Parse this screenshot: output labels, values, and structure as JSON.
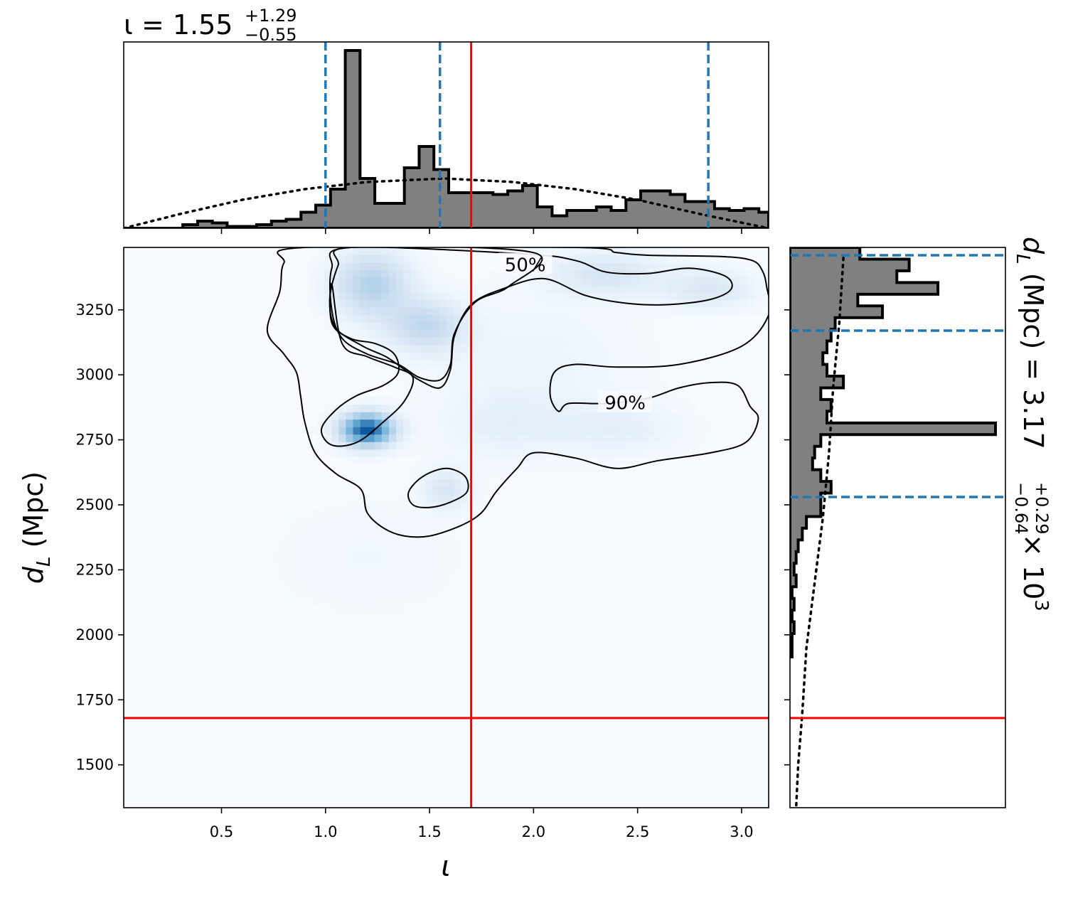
{
  "colors": {
    "hist_fill": "#808080",
    "hist_edge": "#000000",
    "quantile_line": "#1f77b4",
    "truth_line": "#ff0000",
    "prior_line": "#000000",
    "density_colormap": "Blues",
    "density_low": "#f7fbff",
    "density_high": "#08519c"
  },
  "chart_data": [
    {
      "id": "iota-marginal",
      "type": "histogram",
      "title": {
        "symbol": "ι",
        "eq": " = 1.55",
        "sup": "+1.29",
        "sub": "−0.55"
      },
      "xlim": [
        0.03,
        3.13
      ],
      "ylim": [
        0,
        1
      ],
      "xticks": [
        0.5,
        1.0,
        1.5,
        2.0,
        2.5,
        3.0
      ],
      "xtick_labels_shown": false,
      "yticks_shown": false,
      "bin_edges": [
        0.03,
        0.101,
        0.172,
        0.243,
        0.314,
        0.385,
        0.456,
        0.527,
        0.598,
        0.669,
        0.74,
        0.811,
        0.882,
        0.953,
        1.024,
        1.095,
        1.166,
        1.237,
        1.308,
        1.379,
        1.45,
        1.521,
        1.592,
        1.663,
        1.734,
        1.805,
        1.876,
        1.947,
        2.018,
        2.089,
        2.16,
        2.231,
        2.302,
        2.373,
        2.444,
        2.515,
        2.586,
        2.657,
        2.728,
        2.799,
        2.87,
        2.941,
        3.012,
        3.083,
        3.13
      ],
      "counts": [
        0.0,
        0.0,
        0.0,
        0.0,
        0.02,
        0.04,
        0.03,
        0.01,
        0.01,
        0.02,
        0.04,
        0.05,
        0.09,
        0.13,
        0.22,
        1.0,
        0.28,
        0.14,
        0.14,
        0.34,
        0.46,
        0.33,
        0.2,
        0.2,
        0.2,
        0.19,
        0.21,
        0.24,
        0.12,
        0.07,
        0.1,
        0.1,
        0.12,
        0.1,
        0.16,
        0.21,
        0.21,
        0.19,
        0.15,
        0.15,
        0.11,
        0.1,
        0.11,
        0.09
      ],
      "prior": {
        "x": [
          0.03,
          0.3,
          0.6,
          0.9,
          1.2,
          1.57,
          1.9,
          2.2,
          2.5,
          2.8,
          3.13
        ],
        "y": [
          0.0,
          0.08,
          0.16,
          0.22,
          0.26,
          0.28,
          0.26,
          0.22,
          0.16,
          0.08,
          0.0
        ]
      },
      "quantiles": [
        1.0,
        1.55,
        2.84
      ],
      "truth": 1.7
    },
    {
      "id": "joint-density",
      "type": "heatmap",
      "xlabel": "ι",
      "ylabel": {
        "base": "d",
        "sub": "L",
        "rest": " (Mpc)"
      },
      "xlim": [
        0.03,
        3.13
      ],
      "ylim": [
        1335,
        3490
      ],
      "xticks": [
        0.5,
        1.0,
        1.5,
        2.0,
        2.5,
        3.0
      ],
      "xtick_labels": [
        "0.5",
        "1.0",
        "1.5",
        "2.0",
        "2.5",
        "3.0"
      ],
      "yticks": [
        1500,
        1750,
        2000,
        2250,
        2500,
        2750,
        3000,
        3250
      ],
      "ytick_labels": [
        "1500",
        "1750",
        "2000",
        "2250",
        "2500",
        "2750",
        "3000",
        "3250"
      ],
      "density_peaks": [
        {
          "x": 1.2,
          "y": 2790,
          "weight": 1.0,
          "sx": 0.09,
          "sy": 45
        },
        {
          "x": 1.22,
          "y": 3350,
          "weight": 0.42,
          "sx": 0.13,
          "sy": 90
        },
        {
          "x": 1.48,
          "y": 3190,
          "weight": 0.35,
          "sx": 0.13,
          "sy": 70
        },
        {
          "x": 1.58,
          "y": 2560,
          "weight": 0.22,
          "sx": 0.08,
          "sy": 55
        },
        {
          "x": 2.35,
          "y": 3390,
          "weight": 0.22,
          "sx": 0.2,
          "sy": 60
        },
        {
          "x": 2.85,
          "y": 3330,
          "weight": 0.2,
          "sx": 0.15,
          "sy": 55
        },
        {
          "x": 2.4,
          "y": 2790,
          "weight": 0.12,
          "sx": 0.22,
          "sy": 70
        },
        {
          "x": 1.85,
          "y": 2800,
          "weight": 0.1,
          "sx": 0.2,
          "sy": 90
        },
        {
          "x": 1.2,
          "y": 2300,
          "weight": 0.05,
          "sx": 0.3,
          "sy": 150
        },
        {
          "x": 2.0,
          "y": 3050,
          "weight": 0.08,
          "sx": 0.35,
          "sy": 180
        }
      ],
      "contours": [
        {
          "level_label": "50%",
          "label_at": [
            1.96,
            3420
          ],
          "paths": [
            [
              [
                1.03,
                3350
              ],
              [
                1.08,
                3120
              ],
              [
                1.2,
                3070
              ],
              [
                1.33,
                3030
              ],
              [
                1.42,
                2990
              ],
              [
                1.38,
                2900
              ],
              [
                1.28,
                2820
              ],
              [
                1.15,
                2740
              ],
              [
                1.03,
                2730
              ],
              [
                0.98,
                2790
              ],
              [
                1.05,
                2865
              ],
              [
                1.15,
                2920
              ],
              [
                1.28,
                2960
              ],
              [
                1.35,
                3010
              ],
              [
                1.33,
                3080
              ],
              [
                1.24,
                3120
              ],
              [
                1.12,
                3140
              ],
              [
                1.03,
                3200
              ]
            ],
            [
              [
                1.12,
                3490
              ],
              [
                1.95,
                3465
              ],
              [
                2.2,
                3440
              ],
              [
                2.35,
                3395
              ],
              [
                2.55,
                3390
              ],
              [
                2.75,
                3410
              ],
              [
                2.92,
                3380
              ],
              [
                2.95,
                3330
              ],
              [
                2.85,
                3290
              ],
              [
                2.65,
                3270
              ],
              [
                2.45,
                3275
              ],
              [
                2.25,
                3305
              ],
              [
                2.05,
                3370
              ],
              [
                1.85,
                3330
              ],
              [
                1.7,
                3270
              ],
              [
                1.62,
                3150
              ],
              [
                1.6,
                3020
              ],
              [
                1.55,
                2950
              ],
              [
                1.45,
                2980
              ],
              [
                1.38,
                3020
              ],
              [
                1.29,
                3070
              ],
              [
                1.18,
                3110
              ],
              [
                1.05,
                3180
              ],
              [
                1.02,
                3290
              ],
              [
                1.06,
                3420
              ]
            ],
            [
              [
                1.4,
                2550
              ],
              [
                1.47,
                2610
              ],
              [
                1.58,
                2640
              ],
              [
                1.67,
                2610
              ],
              [
                1.68,
                2550
              ],
              [
                1.6,
                2510
              ],
              [
                1.5,
                2490
              ],
              [
                1.42,
                2500
              ]
            ]
          ]
        },
        {
          "level_label": "90%",
          "label_at": [
            2.44,
            2890
          ],
          "paths": [
            [
              [
                0.9,
                3490
              ],
              [
                0.8,
                3430
              ],
              [
                0.78,
                3320
              ],
              [
                0.72,
                3170
              ],
              [
                0.8,
                3080
              ],
              [
                0.86,
                3010
              ],
              [
                0.88,
                2920
              ],
              [
                0.9,
                2820
              ],
              [
                0.95,
                2700
              ],
              [
                1.05,
                2620
              ],
              [
                1.17,
                2560
              ],
              [
                1.2,
                2470
              ],
              [
                1.28,
                2410
              ],
              [
                1.38,
                2380
              ],
              [
                1.5,
                2380
              ],
              [
                1.65,
                2420
              ],
              [
                1.75,
                2470
              ],
              [
                1.82,
                2550
              ],
              [
                1.92,
                2640
              ],
              [
                2.0,
                2700
              ],
              [
                2.2,
                2680
              ],
              [
                2.4,
                2640
              ],
              [
                2.6,
                2670
              ],
              [
                2.85,
                2700
              ],
              [
                3.02,
                2740
              ],
              [
                3.08,
                2830
              ],
              [
                3.04,
                2880
              ],
              [
                2.98,
                2960
              ],
              [
                2.85,
                2970
              ],
              [
                2.7,
                2950
              ],
              [
                2.55,
                2910
              ],
              [
                2.35,
                2890
              ],
              [
                2.17,
                2890
              ],
              [
                2.12,
                2860
              ],
              [
                2.08,
                2920
              ],
              [
                2.1,
                3010
              ],
              [
                2.2,
                3040
              ],
              [
                2.4,
                3030
              ],
              [
                2.7,
                3040
              ],
              [
                3.0,
                3110
              ],
              [
                3.13,
                3230
              ],
              [
                3.12,
                3340
              ],
              [
                3.1,
                3400
              ],
              [
                3.05,
                3440
              ],
              [
                2.9,
                3455
              ],
              [
                2.55,
                3460
              ],
              [
                2.4,
                3470
              ],
              [
                2.2,
                3490
              ]
            ],
            [
              [
                1.12,
                3490
              ],
              [
                1.03,
                3410
              ],
              [
                1.03,
                3250
              ],
              [
                1.08,
                3140
              ],
              [
                1.2,
                3080
              ],
              [
                1.35,
                3040
              ],
              [
                1.45,
                2990
              ],
              [
                1.55,
                2980
              ],
              [
                1.6,
                3040
              ],
              [
                1.62,
                3160
              ],
              [
                1.72,
                3280
              ],
              [
                1.88,
                3340
              ],
              [
                2.0,
                3470
              ]
            ]
          ]
        }
      ],
      "truth": {
        "x": 1.7,
        "y": 1680
      }
    },
    {
      "id": "dL-marginal",
      "type": "histogram",
      "orientation": "horizontal",
      "title": {
        "symbol": "d",
        "symbol_sub": "L",
        "rest": " (Mpc) = 3.17",
        "sup": "+0.29",
        "sub": "−0.64",
        "tail": " × 10",
        "exp": "3"
      },
      "ylim": [
        1335,
        3490
      ],
      "yticks": [
        1500,
        1750,
        2000,
        2250,
        2500,
        2750,
        3000,
        3250
      ],
      "ytick_labels_shown": false,
      "xticks_shown": false,
      "bin_edges": [
        3490,
        3445,
        3400,
        3355,
        3310,
        3265,
        3220,
        3175,
        3130,
        3085,
        3040,
        2995,
        2950,
        2905,
        2860,
        2815,
        2770,
        2725,
        2680,
        2635,
        2590,
        2545,
        2500,
        2455,
        2410,
        2365,
        2320,
        2275,
        2230,
        2185,
        2140,
        2095,
        2050,
        2005,
        1960,
        1915
      ],
      "counts": [
        0.34,
        0.58,
        0.52,
        0.72,
        0.33,
        0.45,
        0.22,
        0.2,
        0.18,
        0.16,
        0.18,
        0.26,
        0.15,
        0.2,
        0.18,
        1.0,
        0.15,
        0.12,
        0.11,
        0.15,
        0.2,
        0.15,
        0.15,
        0.08,
        0.06,
        0.04,
        0.03,
        0.02,
        0.03,
        0.01,
        0.02,
        0.01,
        0.02,
        0.01,
        0.01
      ],
      "prior": {
        "y": [
          3450,
          3200,
          2950,
          2700,
          2450,
          2200,
          1950,
          1700,
          1500,
          1335
        ],
        "x": [
          0.26,
          0.24,
          0.21,
          0.19,
          0.16,
          0.12,
          0.08,
          0.06,
          0.04,
          0.03
        ]
      },
      "quantiles": [
        2530,
        3170,
        3460
      ],
      "truth": 1680
    }
  ]
}
